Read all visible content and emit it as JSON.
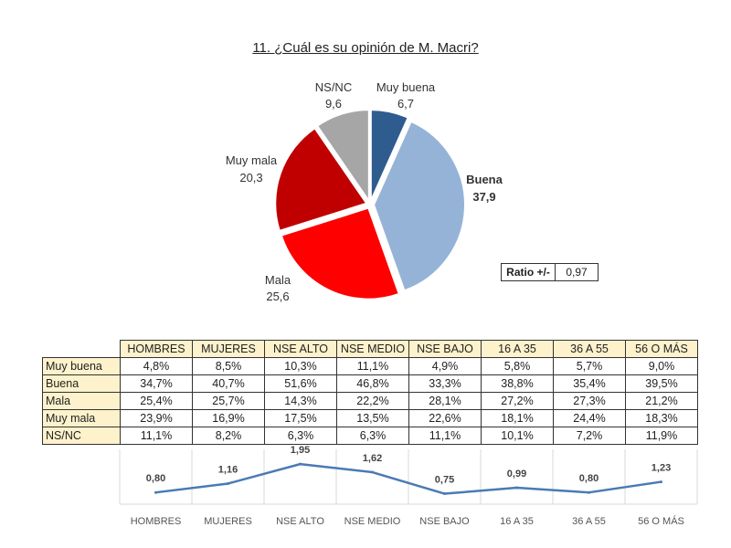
{
  "chart_data": [
    {
      "type": "pie",
      "title": "11. ¿Cuál es su opinión de M. Macri?",
      "slices": [
        {
          "label": "Muy buena",
          "value": "6,7",
          "num": 6.7,
          "color": "#2f5c8f"
        },
        {
          "label": "Buena",
          "value": "37,9",
          "num": 37.9,
          "color": "#95b3d7"
        },
        {
          "label": "Mala",
          "value": "25,6",
          "num": 25.6,
          "color": "#ff0000"
        },
        {
          "label": "Muy mala",
          "value": "20,3",
          "num": 20.3,
          "color": "#c00000"
        },
        {
          "label": "NS/NC",
          "value": "9,6",
          "num": 9.6,
          "color": "#a6a6a6"
        }
      ]
    },
    {
      "type": "table",
      "columns": [
        "HOMBRES",
        "MUJERES",
        "NSE ALTO",
        "NSE MEDIO",
        "NSE BAJO",
        "16 A 35",
        "36 A 55",
        "56 O MÁS"
      ],
      "rows": [
        {
          "label": "Muy buena",
          "values": [
            "4,8%",
            "8,5%",
            "10,3%",
            "11,1%",
            "4,9%",
            "5,8%",
            "5,7%",
            "9,0%"
          ]
        },
        {
          "label": "Buena",
          "values": [
            "34,7%",
            "40,7%",
            "51,6%",
            "46,8%",
            "33,3%",
            "38,8%",
            "35,4%",
            "39,5%"
          ]
        },
        {
          "label": "Mala",
          "values": [
            "25,4%",
            "25,7%",
            "14,3%",
            "22,2%",
            "28,1%",
            "27,2%",
            "27,3%",
            "21,2%"
          ]
        },
        {
          "label": "Muy mala",
          "values": [
            "23,9%",
            "16,9%",
            "17,5%",
            "13,5%",
            "22,6%",
            "18,1%",
            "24,4%",
            "18,3%"
          ]
        },
        {
          "label": "NS/NC",
          "values": [
            "11,1%",
            "8,2%",
            "6,3%",
            "6,3%",
            "11,1%",
            "10,1%",
            "7,2%",
            "11,9%"
          ]
        }
      ]
    },
    {
      "type": "line",
      "categories": [
        "HOMBRES",
        "MUJERES",
        "NSE ALTO",
        "NSE MEDIO",
        "NSE BAJO",
        "16 A 35",
        "36 A 55",
        "56 O MÁS"
      ],
      "values": [
        0.8,
        1.16,
        1.95,
        1.62,
        0.75,
        0.99,
        0.8,
        1.23
      ],
      "labels": [
        "0,80",
        "1,16",
        "1,95",
        "1,62",
        "0,75",
        "0,99",
        "0,80",
        "1,23"
      ],
      "color": "#4a7ab5"
    }
  ],
  "ratio": {
    "label": "Ratio +/-",
    "value": "0,97"
  }
}
